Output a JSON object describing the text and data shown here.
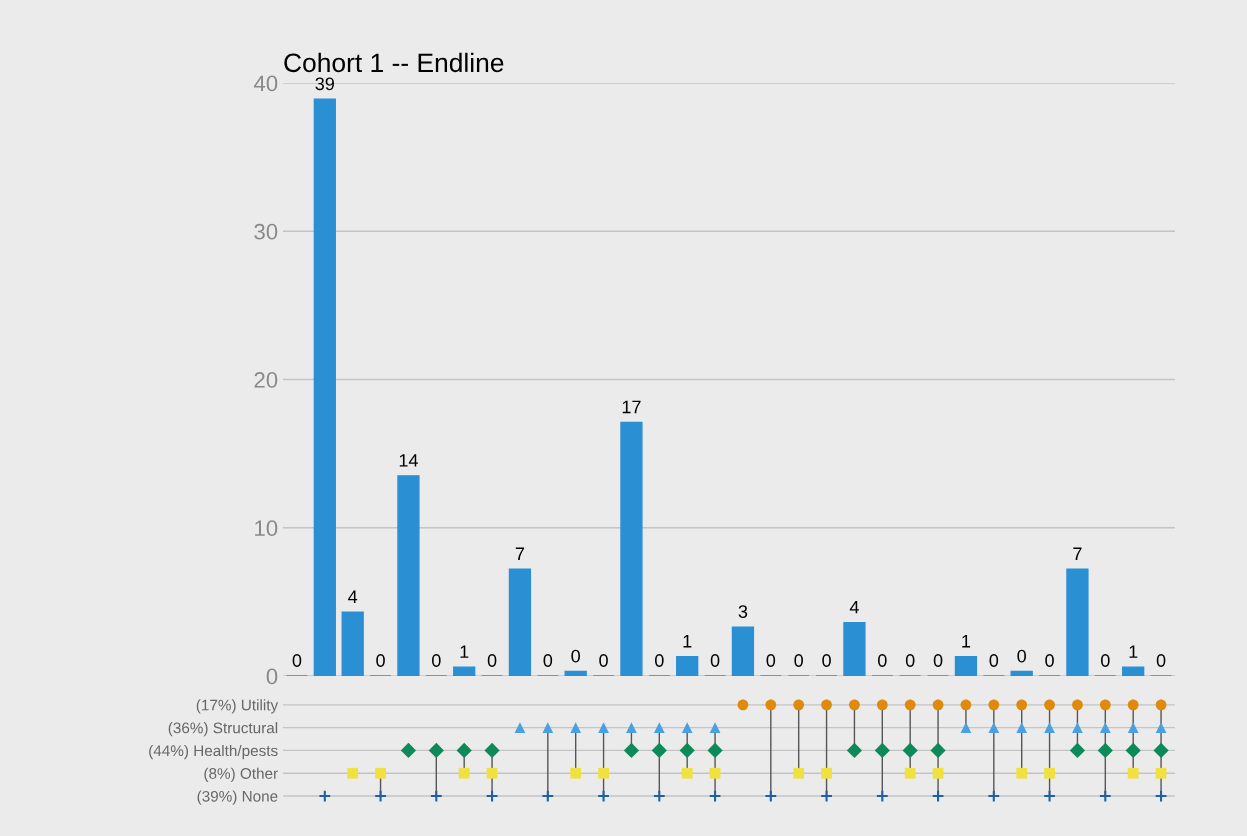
{
  "chart_data": [
    {
      "type": "bar",
      "title": "Cohort 1 -- Endline",
      "categories": [
        null,
        null,
        null,
        null,
        null,
        null,
        null,
        null,
        null,
        null,
        null,
        null,
        null,
        null,
        null,
        null,
        null,
        null,
        null,
        null,
        null,
        null,
        null,
        null,
        null,
        null,
        null,
        null,
        null,
        null,
        null,
        null
      ],
      "values": [
        0,
        38.9,
        4.3,
        0,
        13.5,
        0,
        0.6,
        0,
        7.2,
        0,
        0.3,
        0,
        17.1,
        0,
        1.3,
        0,
        3.3,
        0,
        0,
        0,
        3.6,
        0,
        0,
        0,
        1.3,
        0,
        0.3,
        0,
        7.2,
        0,
        0.6,
        0
      ],
      "value_labels": [
        "0",
        "39",
        "4",
        "0",
        "14",
        "0",
        "1",
        "0",
        "7",
        "0",
        "0",
        "0",
        "17",
        "0",
        "1",
        "0",
        "3",
        "0",
        "0",
        "0",
        "4",
        "0",
        "0",
        "0",
        "1",
        "0",
        "0",
        "0",
        "7",
        "0",
        "1",
        "0"
      ],
      "color": "#2b8fd4",
      "ylim": [
        0,
        40
      ],
      "yticks": [
        0,
        10,
        20,
        30,
        40
      ],
      "grid": "y",
      "legend": false
    },
    {
      "type": "other",
      "categories": [
        null,
        null,
        null,
        null,
        null,
        null,
        null,
        null,
        null,
        null,
        null,
        null,
        null,
        null,
        null,
        null,
        null,
        null,
        null,
        null,
        null,
        null,
        null,
        null,
        null,
        null,
        null,
        null,
        null,
        null,
        null,
        null
      ],
      "y_categories": [
        "(17%) Utility",
        "(36%) Structural",
        "(44%) Health/pests",
        "(8%) Other",
        "(39%) None"
      ],
      "colors": [
        "#e08a0b",
        "#4aa0e0",
        "#0e8a5a",
        "#f0e040",
        "#2060a0"
      ],
      "cells": [
        [
          false,
          false,
          false,
          false,
          false,
          false,
          false,
          false,
          false,
          false,
          false,
          false,
          false,
          false,
          false,
          false,
          true,
          true,
          true,
          true,
          true,
          true,
          true,
          true,
          true,
          true,
          true,
          true,
          true,
          true,
          true,
          true
        ],
        [
          false,
          false,
          false,
          false,
          false,
          false,
          false,
          false,
          true,
          true,
          true,
          true,
          true,
          true,
          true,
          true,
          false,
          false,
          false,
          false,
          false,
          false,
          false,
          false,
          true,
          true,
          true,
          true,
          true,
          true,
          true,
          true
        ],
        [
          false,
          false,
          false,
          false,
          true,
          true,
          true,
          true,
          false,
          false,
          false,
          false,
          true,
          true,
          true,
          true,
          false,
          false,
          false,
          false,
          true,
          true,
          true,
          true,
          false,
          false,
          false,
          false,
          true,
          true,
          true,
          true
        ],
        [
          false,
          false,
          true,
          true,
          false,
          false,
          true,
          true,
          false,
          false,
          true,
          true,
          false,
          false,
          true,
          true,
          false,
          false,
          true,
          true,
          false,
          false,
          true,
          true,
          false,
          false,
          true,
          true,
          false,
          false,
          true,
          true
        ],
        [
          false,
          true,
          false,
          true,
          false,
          true,
          false,
          true,
          false,
          true,
          false,
          true,
          false,
          true,
          false,
          true,
          false,
          true,
          false,
          true,
          false,
          true,
          false,
          true,
          false,
          true,
          false,
          true,
          false,
          true,
          false,
          true
        ]
      ]
    }
  ]
}
